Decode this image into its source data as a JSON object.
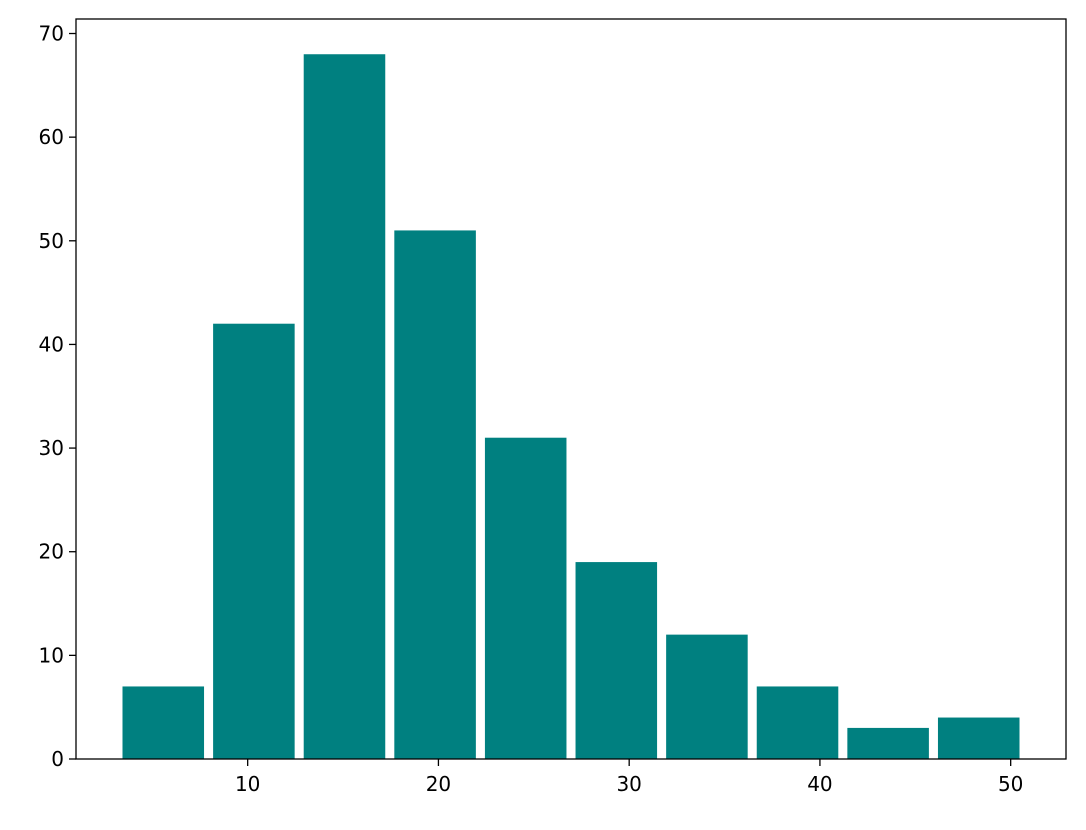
{
  "chart_data": {
    "type": "histogram",
    "bins": [
      3.2,
      7.95,
      12.7,
      17.45,
      22.2,
      26.95,
      31.7,
      36.45,
      41.2,
      45.95,
      50.7
    ],
    "counts": [
      7,
      42,
      68,
      51,
      31,
      19,
      12,
      7,
      3,
      4
    ],
    "color": "#008080",
    "xlim": [
      1.0,
      52.9
    ],
    "xticks": [
      10,
      20,
      30,
      40,
      50
    ],
    "ylim": [
      0,
      71.4
    ],
    "yticks": [
      0,
      10,
      20,
      30,
      40,
      50,
      60,
      70
    ],
    "grid": false
  }
}
